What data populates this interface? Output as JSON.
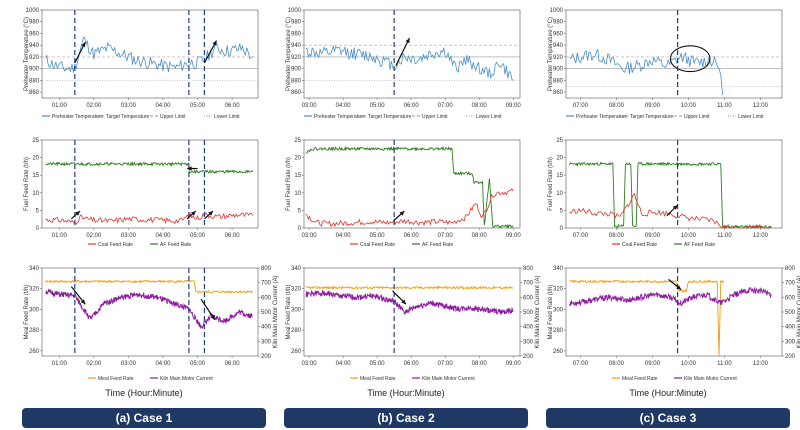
{
  "colors": {
    "preheater": "#4a90c8",
    "target": "#999999",
    "limit": "#aaaaaa",
    "coal": "#e8312a",
    "af": "#2e7d1f",
    "meal": "#f39c12",
    "kiln": "#8e1d9e",
    "event_line": "#1f3c88",
    "arrow": "#111111",
    "banner": "#1f3864"
  },
  "legends": {
    "temperature": [
      "Preheater Temperature",
      "Target Temperature",
      "Upper Limit",
      "Lower Limit"
    ],
    "fuel": [
      "Coal Feed Rate",
      "AF Feed Rate"
    ],
    "meal": [
      "Meal Feed Rate",
      "Kiln Main Motor Current"
    ]
  },
  "axis_labels": {
    "temperature": "Preheater Temperature (°C)",
    "fuel": "Fuel Feed Rate (t/h)",
    "meal": "Meal Feed Rate (t/h)",
    "kiln": "Kiln Main Motor Current (A)",
    "time": "Time (Hour:Minute)"
  },
  "chart_data": [
    {
      "type": "line",
      "case": "(a) Case 1",
      "x_ticks": [
        "01:00",
        "02:00",
        "03:00",
        "04:00",
        "05:00",
        "06:00"
      ],
      "x_range_hours": [
        0.5,
        6.75
      ],
      "x_tick_hours": [
        1,
        2,
        3,
        4,
        5,
        6
      ],
      "event_lines_hours": [
        1.45,
        4.75,
        5.2
      ],
      "temperature": {
        "ylim": [
          850,
          1000
        ],
        "y_ticks": [
          860,
          880,
          900,
          920,
          940,
          960,
          980,
          1000
        ],
        "target": 900,
        "upper_limit": 920,
        "lower_limit": 880,
        "preheater": [
          [
            0.6,
            915
          ],
          [
            0.9,
            905
          ],
          [
            1.2,
            900
          ],
          [
            1.45,
            902
          ],
          [
            1.7,
            950
          ],
          [
            2.0,
            925
          ],
          [
            2.4,
            935
          ],
          [
            2.8,
            925
          ],
          [
            3.2,
            915
          ],
          [
            3.6,
            910
          ],
          [
            4.0,
            905
          ],
          [
            4.4,
            902
          ],
          [
            4.75,
            910
          ],
          [
            5.0,
            910
          ],
          [
            5.2,
            915
          ],
          [
            5.5,
            935
          ],
          [
            5.9,
            930
          ],
          [
            6.3,
            935
          ],
          [
            6.6,
            920
          ]
        ],
        "arrows": [
          [
            1.45,
            910,
            1.75,
            945
          ],
          [
            5.2,
            910,
            5.55,
            948
          ]
        ]
      },
      "fuel": {
        "ylim": [
          0,
          25
        ],
        "y_ticks": [
          0,
          5,
          10,
          15,
          20,
          25
        ],
        "af": [
          [
            0.6,
            18.2
          ],
          [
            4.75,
            18.2
          ],
          [
            4.76,
            16.0
          ],
          [
            6.6,
            16.0
          ]
        ],
        "coal": [
          [
            0.6,
            2.4
          ],
          [
            1.1,
            2.2
          ],
          [
            1.45,
            1.5
          ],
          [
            1.6,
            3.0
          ],
          [
            2.0,
            2.2
          ],
          [
            2.5,
            2.0
          ],
          [
            3.0,
            2.6
          ],
          [
            3.5,
            2.4
          ],
          [
            4.0,
            2.2
          ],
          [
            4.5,
            2.0
          ],
          [
            4.75,
            3.5
          ],
          [
            5.0,
            2.8
          ],
          [
            5.2,
            3.8
          ],
          [
            5.6,
            3.2
          ],
          [
            6.2,
            3.8
          ],
          [
            6.6,
            3.5
          ]
        ],
        "arrows": [
          [
            1.35,
            2.6,
            1.6,
            4.8
          ],
          [
            4.7,
            2.6,
            4.95,
            4.8
          ],
          [
            5.2,
            2.6,
            5.45,
            4.8
          ],
          [
            5.0,
            16.9,
            4.7,
            16.9
          ]
        ]
      },
      "meal": {
        "ylim": [
          255,
          340
        ],
        "y_ticks": [
          260,
          280,
          300,
          320,
          340
        ],
        "kiln_ylim": [
          200,
          800
        ],
        "kiln_ticks": [
          200,
          300,
          400,
          500,
          600,
          700,
          800
        ],
        "meal_rate": [
          [
            0.6,
            327
          ],
          [
            4.9,
            327
          ],
          [
            4.95,
            317
          ],
          [
            6.6,
            317
          ]
        ],
        "kiln_current": [
          [
            0.6,
            640
          ],
          [
            1.0,
            620
          ],
          [
            1.45,
            610
          ],
          [
            1.9,
            450
          ],
          [
            2.3,
            560
          ],
          [
            2.8,
            600
          ],
          [
            3.3,
            620
          ],
          [
            3.8,
            600
          ],
          [
            4.3,
            560
          ],
          [
            4.75,
            520
          ],
          [
            5.1,
            400
          ],
          [
            5.4,
            470
          ],
          [
            5.8,
            440
          ],
          [
            6.2,
            500
          ],
          [
            6.6,
            470
          ]
        ],
        "arrows": [
          [
            1.35,
            322,
            1.75,
            305
          ],
          [
            5.1,
            310,
            5.5,
            290
          ]
        ]
      }
    },
    {
      "type": "line",
      "case": "(b) Case 2",
      "x_ticks": [
        "03:00",
        "04:00",
        "05:00",
        "06:00",
        "07:00",
        "08:00",
        "09:00"
      ],
      "x_range_hours": [
        2.85,
        9.2
      ],
      "x_tick_hours": [
        3,
        4,
        5,
        6,
        7,
        8,
        9
      ],
      "event_lines_hours": [
        5.5
      ],
      "temperature": {
        "ylim": [
          850,
          1000
        ],
        "y_ticks": [
          860,
          880,
          900,
          920,
          940,
          960,
          980,
          1000
        ],
        "target": 920,
        "upper_limit": 940,
        "lower_limit": 880,
        "preheater": [
          [
            2.9,
            930
          ],
          [
            3.4,
            925
          ],
          [
            3.9,
            930
          ],
          [
            4.4,
            925
          ],
          [
            4.9,
            920
          ],
          [
            5.5,
            905
          ],
          [
            5.8,
            920
          ],
          [
            6.2,
            915
          ],
          [
            6.6,
            925
          ],
          [
            7.0,
            930
          ],
          [
            7.3,
            900
          ],
          [
            7.6,
            915
          ],
          [
            7.9,
            905
          ],
          [
            8.3,
            890
          ],
          [
            8.6,
            910
          ],
          [
            9.0,
            880
          ]
        ],
        "arrows": [
          [
            5.55,
            905,
            5.95,
            952
          ]
        ]
      },
      "fuel": {
        "ylim": [
          0,
          25
        ],
        "y_ticks": [
          0,
          5,
          10,
          15,
          20,
          25
        ],
        "af": [
          [
            2.9,
            21.5
          ],
          [
            3.1,
            22.5
          ],
          [
            7.2,
            22.5
          ],
          [
            7.25,
            15.5
          ],
          [
            7.8,
            15.5
          ],
          [
            7.85,
            13.0
          ],
          [
            8.1,
            13.0
          ],
          [
            8.15,
            0.5
          ],
          [
            8.3,
            14.0
          ],
          [
            8.4,
            0.5
          ],
          [
            9.0,
            0.5
          ]
        ],
        "coal": [
          [
            2.9,
            4.0
          ],
          [
            3.2,
            1.5
          ],
          [
            3.6,
            1.2
          ],
          [
            4.2,
            1.5
          ],
          [
            4.8,
            1.8
          ],
          [
            5.3,
            1.5
          ],
          [
            5.8,
            2.0
          ],
          [
            6.3,
            1.6
          ],
          [
            6.8,
            1.8
          ],
          [
            7.2,
            1.5
          ],
          [
            7.6,
            3.0
          ],
          [
            7.9,
            7.0
          ],
          [
            8.1,
            3.0
          ],
          [
            8.4,
            9.5
          ],
          [
            8.5,
            10.0
          ],
          [
            8.8,
            10.2
          ],
          [
            9.0,
            10.5
          ]
        ],
        "arrows": [
          [
            5.5,
            2.2,
            5.8,
            4.8
          ]
        ]
      },
      "meal": {
        "ylim": [
          255,
          340
        ],
        "y_ticks": [
          260,
          280,
          300,
          320,
          340
        ],
        "kiln_ylim": [
          200,
          800
        ],
        "kiln_ticks": [
          200,
          300,
          400,
          500,
          600,
          700,
          800
        ],
        "meal_rate": [
          [
            2.9,
            321
          ],
          [
            9.0,
            321
          ]
        ],
        "kiln_current": [
          [
            2.9,
            620
          ],
          [
            3.4,
            630
          ],
          [
            3.9,
            610
          ],
          [
            4.4,
            600
          ],
          [
            4.9,
            610
          ],
          [
            5.5,
            570
          ],
          [
            5.8,
            500
          ],
          [
            6.2,
            540
          ],
          [
            6.6,
            560
          ],
          [
            7.0,
            540
          ],
          [
            7.4,
            520
          ],
          [
            7.8,
            530
          ],
          [
            8.2,
            510
          ],
          [
            8.6,
            500
          ],
          [
            9.0,
            510
          ]
        ],
        "arrows": [
          [
            5.45,
            318,
            5.85,
            305
          ]
        ]
      }
    },
    {
      "type": "line",
      "case": "(c) Case 3",
      "x_ticks": [
        "07:00",
        "08:00",
        "09:00",
        "10:00",
        "11:00",
        "12:00"
      ],
      "x_range_hours": [
        6.6,
        12.6
      ],
      "x_tick_hours": [
        7,
        8,
        9,
        10,
        11,
        12
      ],
      "event_lines_hours": [
        9.7
      ],
      "temperature": {
        "ylim": [
          850,
          1000
        ],
        "y_ticks": [
          860,
          880,
          900,
          920,
          940,
          960,
          980,
          1000
        ],
        "target": 900,
        "upper_limit": 920,
        "lower_limit": 870,
        "preheater": [
          [
            6.7,
            915
          ],
          [
            7.0,
            920
          ],
          [
            7.4,
            925
          ],
          [
            7.8,
            915
          ],
          [
            8.2,
            900
          ],
          [
            8.6,
            905
          ],
          [
            9.0,
            915
          ],
          [
            9.4,
            905
          ],
          [
            9.8,
            920
          ],
          [
            10.2,
            910
          ],
          [
            10.6,
            915
          ],
          [
            10.85,
            905
          ],
          [
            10.95,
            855
          ]
        ],
        "circle": [
          10.05,
          917,
          0.55,
          22
        ]
      },
      "fuel": {
        "ylim": [
          0,
          25
        ],
        "y_ticks": [
          0,
          5,
          10,
          15,
          20,
          25
        ],
        "af": [
          [
            6.7,
            18.2
          ],
          [
            7.9,
            18.2
          ],
          [
            7.95,
            0.5
          ],
          [
            8.2,
            0.5
          ],
          [
            8.25,
            18.2
          ],
          [
            8.4,
            18.2
          ],
          [
            8.45,
            0.5
          ],
          [
            8.55,
            0.5
          ],
          [
            8.6,
            18.2
          ],
          [
            10.9,
            18.2
          ],
          [
            10.95,
            0.3
          ],
          [
            12.3,
            0.3
          ]
        ],
        "coal": [
          [
            6.7,
            4.5
          ],
          [
            7.0,
            5.0
          ],
          [
            7.4,
            4.2
          ],
          [
            7.8,
            4.0
          ],
          [
            8.1,
            3.0
          ],
          [
            8.5,
            9.5
          ],
          [
            8.7,
            4.0
          ],
          [
            9.1,
            4.5
          ],
          [
            9.5,
            4.0
          ],
          [
            9.9,
            3.0
          ],
          [
            10.3,
            2.5
          ],
          [
            10.7,
            2.0
          ],
          [
            10.95,
            0.3
          ],
          [
            12.3,
            0.3
          ]
        ],
        "arrows": [
          [
            9.4,
            3.5,
            9.7,
            6.5
          ]
        ]
      },
      "meal": {
        "ylim": [
          255,
          340
        ],
        "y_ticks": [
          260,
          280,
          300,
          320,
          340
        ],
        "kiln_ylim": [
          200,
          800
        ],
        "kiln_ticks": [
          200,
          300,
          400,
          500,
          600,
          700,
          800
        ],
        "meal_rate": [
          [
            6.7,
            327
          ],
          [
            9.65,
            327
          ],
          [
            9.7,
            318
          ],
          [
            9.95,
            318
          ],
          [
            10.0,
            327
          ],
          [
            10.8,
            327
          ],
          [
            10.85,
            255
          ],
          [
            10.9,
            327
          ],
          [
            11.0,
            327
          ]
        ],
        "kiln_current": [
          [
            6.7,
            560
          ],
          [
            7.1,
            570
          ],
          [
            7.5,
            590
          ],
          [
            7.9,
            600
          ],
          [
            8.3,
            580
          ],
          [
            8.7,
            600
          ],
          [
            9.1,
            620
          ],
          [
            9.5,
            600
          ],
          [
            9.8,
            560
          ],
          [
            10.1,
            600
          ],
          [
            10.5,
            620
          ],
          [
            10.9,
            560
          ],
          [
            11.3,
            620
          ],
          [
            11.7,
            650
          ],
          [
            12.1,
            640
          ],
          [
            12.3,
            620
          ]
        ],
        "arrows": [
          [
            9.45,
            329,
            9.8,
            319
          ]
        ]
      }
    }
  ],
  "cases": [
    "(a) Case 1",
    "(b) Case 2",
    "(c) Case 3"
  ]
}
